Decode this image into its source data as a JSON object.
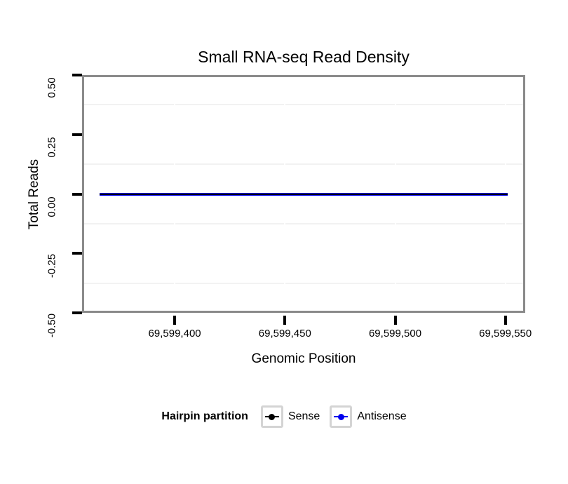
{
  "title": "Small RNA-seq Read Density",
  "x_axis": {
    "label": "Genomic Position",
    "ticks": [
      "69,599,400",
      "69,599,450",
      "69,599,500",
      "69,599,550"
    ]
  },
  "y_axis": {
    "label": "Total Reads",
    "ticks": [
      "0.50",
      "0.25",
      "0.00",
      "-0.25",
      "-0.50"
    ]
  },
  "legend": {
    "title": "Hairpin partition",
    "items": [
      {
        "label": "Sense",
        "color": "#000000"
      },
      {
        "label": "Antisense",
        "color": "#0000ee"
      }
    ]
  },
  "chart_data": {
    "type": "line",
    "title": "Small RNA-seq Read Density",
    "xlabel": "Genomic Position",
    "ylabel": "Total Reads",
    "xlim": [
      69599358,
      69599559
    ],
    "ylim": [
      -0.5,
      0.5
    ],
    "xticks": [
      69599400,
      69599450,
      69599500,
      69599550
    ],
    "yticks": [
      0.5,
      0.25,
      0.0,
      -0.25,
      -0.5
    ],
    "xtick_step": 50,
    "ytick_step": 0.25,
    "grid": true,
    "legend_title": "Hairpin partition",
    "legend_position": "bottom",
    "series": [
      {
        "name": "Sense",
        "color": "#000000",
        "x": [
          69599366,
          69599551
        ],
        "y": [
          0,
          0
        ]
      },
      {
        "name": "Antisense",
        "color": "#0000ee",
        "x": [
          69599366,
          69599551
        ],
        "y": [
          0,
          0
        ]
      }
    ]
  }
}
